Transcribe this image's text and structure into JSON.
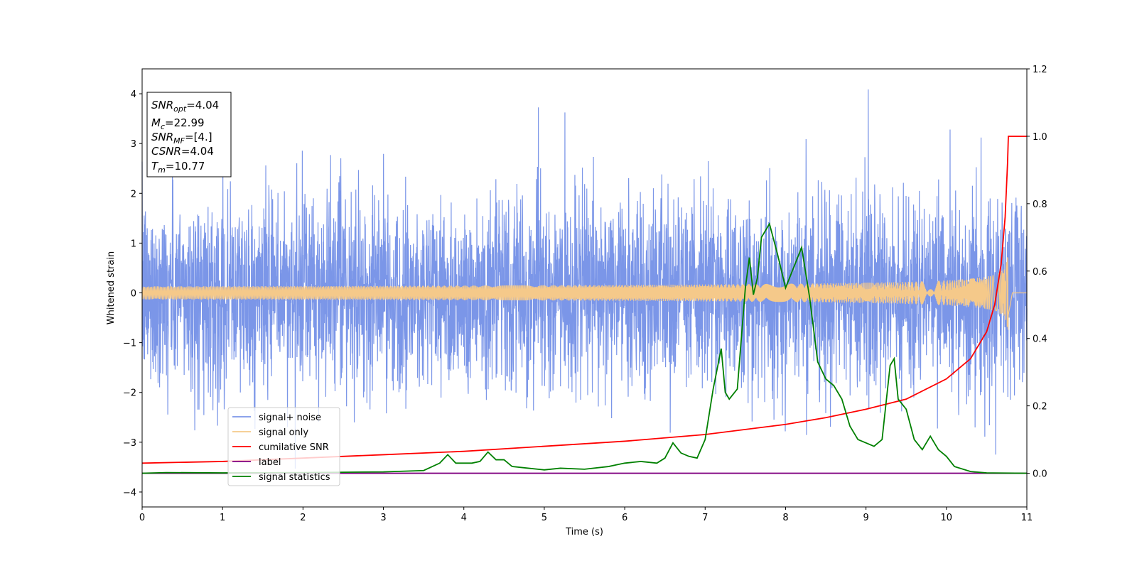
{
  "chart_data": {
    "type": "line",
    "xlabel": "Time (s)",
    "ylabel": "Whitened strain",
    "xlim": [
      0,
      11
    ],
    "ylim": [
      -4.3,
      4.5
    ],
    "y2lim": [
      -0.1,
      1.2
    ],
    "xticks": [
      0,
      1,
      2,
      3,
      4,
      5,
      6,
      7,
      8,
      9,
      10,
      11
    ],
    "yticks": [
      -4,
      -3,
      -2,
      -1,
      0,
      1,
      2,
      3,
      4
    ],
    "y2ticks": [
      0.0,
      0.2,
      0.4,
      0.6,
      0.8,
      1.0,
      1.2
    ],
    "legend_position": "lower-left",
    "annotation_box_position": "upper-left",
    "annotation": {
      "snr_opt": {
        "base": "SNR",
        "sub": "opt",
        "value": "=4.04"
      },
      "mc": {
        "base": "M",
        "sub": "c",
        "value": "=22.99"
      },
      "snr_mf": {
        "base": "SNR",
        "sub": "MF",
        "value": "=[4.]"
      },
      "csnr": {
        "base": "CSNR",
        "value": "=4.04"
      },
      "tm": {
        "base": "T",
        "sub": "m",
        "value": "=10.77"
      }
    },
    "series": [
      {
        "name": "signal+ noise",
        "color": "#7b96e8",
        "axis": "left",
        "style": "dense gaussian noise, amplitude ~ ±2.5 with spikes up to 4.2",
        "range": [
          -3.85,
          4.2
        ]
      },
      {
        "name": "signal only",
        "color": "#f5c98a",
        "axis": "left",
        "style": "chirp growing toward merger",
        "peak_time": 10.77,
        "peak_amplitude": 0.75
      },
      {
        "name": "cumilative SNR",
        "color": "#ff0000",
        "axis": "right",
        "points": [
          [
            0,
            0.03
          ],
          [
            1,
            0.035
          ],
          [
            2,
            0.045
          ],
          [
            3,
            0.055
          ],
          [
            4,
            0.065
          ],
          [
            5,
            0.08
          ],
          [
            6,
            0.095
          ],
          [
            7,
            0.115
          ],
          [
            8,
            0.145
          ],
          [
            8.5,
            0.165
          ],
          [
            9,
            0.19
          ],
          [
            9.5,
            0.22
          ],
          [
            10,
            0.28
          ],
          [
            10.3,
            0.34
          ],
          [
            10.5,
            0.42
          ],
          [
            10.6,
            0.5
          ],
          [
            10.68,
            0.62
          ],
          [
            10.73,
            0.76
          ],
          [
            10.76,
            0.92
          ],
          [
            10.77,
            1.0
          ],
          [
            11,
            1.0
          ]
        ]
      },
      {
        "name": "label",
        "color": "#800080",
        "axis": "right",
        "points": [
          [
            0,
            0.0
          ],
          [
            11,
            0.0
          ]
        ]
      },
      {
        "name": "signal statistics",
        "color": "#008000",
        "axis": "right",
        "points": [
          [
            0,
            0.0
          ],
          [
            0.3,
            0.002
          ],
          [
            1,
            0.001
          ],
          [
            2,
            0.002
          ],
          [
            3,
            0.004
          ],
          [
            3.5,
            0.008
          ],
          [
            3.7,
            0.03
          ],
          [
            3.8,
            0.055
          ],
          [
            3.9,
            0.03
          ],
          [
            4.1,
            0.03
          ],
          [
            4.2,
            0.035
          ],
          [
            4.3,
            0.063
          ],
          [
            4.4,
            0.04
          ],
          [
            4.5,
            0.04
          ],
          [
            4.6,
            0.02
          ],
          [
            4.8,
            0.015
          ],
          [
            5.0,
            0.01
          ],
          [
            5.2,
            0.015
          ],
          [
            5.5,
            0.012
          ],
          [
            5.8,
            0.02
          ],
          [
            5.9,
            0.025
          ],
          [
            6.0,
            0.03
          ],
          [
            6.2,
            0.035
          ],
          [
            6.4,
            0.03
          ],
          [
            6.5,
            0.045
          ],
          [
            6.6,
            0.09
          ],
          [
            6.7,
            0.06
          ],
          [
            6.8,
            0.05
          ],
          [
            6.9,
            0.045
          ],
          [
            7.0,
            0.1
          ],
          [
            7.1,
            0.25
          ],
          [
            7.2,
            0.37
          ],
          [
            7.25,
            0.24
          ],
          [
            7.3,
            0.22
          ],
          [
            7.4,
            0.25
          ],
          [
            7.5,
            0.55
          ],
          [
            7.55,
            0.64
          ],
          [
            7.6,
            0.53
          ],
          [
            7.65,
            0.58
          ],
          [
            7.7,
            0.7
          ],
          [
            7.8,
            0.74
          ],
          [
            7.9,
            0.65
          ],
          [
            8.0,
            0.55
          ],
          [
            8.1,
            0.61
          ],
          [
            8.2,
            0.67
          ],
          [
            8.3,
            0.52
          ],
          [
            8.4,
            0.33
          ],
          [
            8.5,
            0.28
          ],
          [
            8.6,
            0.26
          ],
          [
            8.7,
            0.22
          ],
          [
            8.8,
            0.14
          ],
          [
            8.9,
            0.1
          ],
          [
            9.0,
            0.09
          ],
          [
            9.1,
            0.08
          ],
          [
            9.2,
            0.1
          ],
          [
            9.3,
            0.32
          ],
          [
            9.35,
            0.34
          ],
          [
            9.4,
            0.22
          ],
          [
            9.5,
            0.19
          ],
          [
            9.6,
            0.1
          ],
          [
            9.7,
            0.07
          ],
          [
            9.8,
            0.11
          ],
          [
            9.9,
            0.07
          ],
          [
            10.0,
            0.05
          ],
          [
            10.1,
            0.02
          ],
          [
            10.3,
            0.005
          ],
          [
            10.5,
            0.001
          ],
          [
            11,
            0.0
          ]
        ]
      }
    ]
  }
}
